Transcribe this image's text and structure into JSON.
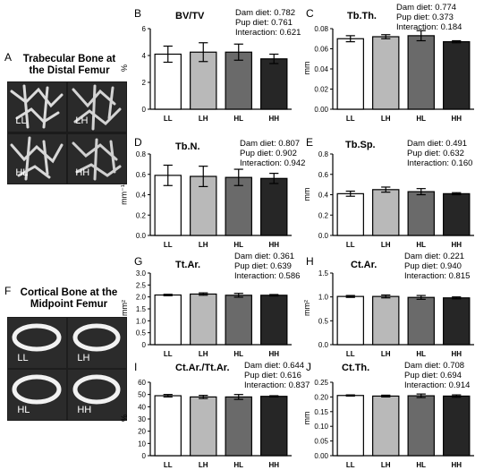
{
  "panel_a": {
    "label": "A",
    "title_line1": "Trabecular Bone at",
    "title_line2": "the Distal Femur",
    "groups": [
      "LL",
      "LH",
      "HL",
      "HH"
    ]
  },
  "panel_f": {
    "label": "F",
    "title_line1": "Cortical Bone at the",
    "title_line2": "Midpoint Femur",
    "groups": [
      "LL",
      "LH",
      "HL",
      "HH"
    ]
  },
  "colors": {
    "LL": "#ffffff",
    "LH": "#b9b9b9",
    "HL": "#6a6a6a",
    "HH": "#262626"
  },
  "chart_data": [
    {
      "id": "B",
      "type": "bar",
      "title": "BV/TV",
      "ylabel": "%",
      "categories": [
        "LL",
        "LH",
        "HL",
        "HH"
      ],
      "values": [
        4.1,
        4.25,
        4.25,
        3.75
      ],
      "errors": [
        0.6,
        0.7,
        0.6,
        0.35
      ],
      "ylim": [
        0,
        6
      ],
      "ticks": [
        0,
        2,
        4,
        6
      ],
      "stats": [
        "Dam diet: 0.782",
        "Pup diet: 0.761",
        "Interaction: 0.621"
      ]
    },
    {
      "id": "C",
      "type": "bar",
      "title": "Tb.Th.",
      "ylabel": "mm",
      "categories": [
        "LL",
        "LH",
        "HL",
        "HH"
      ],
      "values": [
        0.07,
        0.072,
        0.073,
        0.067
      ],
      "errors": [
        0.003,
        0.002,
        0.005,
        0.001
      ],
      "ylim": [
        0,
        0.08
      ],
      "ticks": [
        0,
        0.02,
        0.04,
        0.06,
        0.08
      ],
      "tick_labels": [
        "0.00",
        "0.02",
        "0.04",
        "0.06",
        "0.08"
      ],
      "stats": [
        "Dam diet: 0.774",
        "Pup diet: 0.373",
        "Interaction: 0.184"
      ]
    },
    {
      "id": "D",
      "type": "bar",
      "title": "Tb.N.",
      "ylabel": "mm⁻¹",
      "categories": [
        "LL",
        "LH",
        "HL",
        "HH"
      ],
      "values": [
        0.59,
        0.58,
        0.57,
        0.56
      ],
      "errors": [
        0.1,
        0.1,
        0.08,
        0.05
      ],
      "ylim": [
        0,
        0.8
      ],
      "ticks": [
        0,
        0.2,
        0.4,
        0.6,
        0.8
      ],
      "tick_labels": [
        "0.0",
        "0.2",
        "0.4",
        "0.6",
        "0.8"
      ],
      "stats": [
        "Dam diet: 0.807",
        "Pup diet: 0.902",
        "Interaction: 0.942"
      ]
    },
    {
      "id": "E",
      "type": "bar",
      "title": "Tb.Sp.",
      "ylabel": "mm",
      "categories": [
        "LL",
        "LH",
        "HL",
        "HH"
      ],
      "values": [
        0.41,
        0.45,
        0.43,
        0.41
      ],
      "errors": [
        0.025,
        0.025,
        0.03,
        0.01
      ],
      "ylim": [
        0,
        0.8
      ],
      "ticks": [
        0,
        0.2,
        0.4,
        0.6,
        0.8
      ],
      "tick_labels": [
        "0.0",
        "0.2",
        "0.4",
        "0.6",
        "0.8"
      ],
      "stats": [
        "Dam diet: 0.491",
        "Pup diet: 0.632",
        "Interaction: 0.160"
      ]
    },
    {
      "id": "G",
      "type": "bar",
      "title": "Tt.Ar.",
      "ylabel": "mm²",
      "categories": [
        "LL",
        "LH",
        "HL",
        "HH"
      ],
      "values": [
        2.08,
        2.12,
        2.07,
        2.07
      ],
      "errors": [
        0.03,
        0.05,
        0.08,
        0.03
      ],
      "ylim": [
        0,
        3
      ],
      "ticks": [
        0,
        0.5,
        1.0,
        1.5,
        2.0,
        2.5,
        3.0
      ],
      "tick_labels": [
        "0",
        "0.5",
        "1.0",
        "1.5",
        "2.0",
        "2.5",
        "3.0"
      ],
      "stats": [
        "Dam diet: 0.361",
        "Pup diet: 0.639",
        "Interaction: 0.586"
      ]
    },
    {
      "id": "H",
      "type": "bar",
      "title": "Ct.Ar.",
      "ylabel": "mm²",
      "categories": [
        "LL",
        "LH",
        "HL",
        "HH"
      ],
      "values": [
        1.01,
        1.01,
        0.99,
        0.98
      ],
      "errors": [
        0.02,
        0.03,
        0.04,
        0.02
      ],
      "ylim": [
        0,
        1.5
      ],
      "ticks": [
        0,
        0.5,
        1.0,
        1.5
      ],
      "tick_labels": [
        "0.0",
        "0.5",
        "1.0",
        "1.5"
      ],
      "stats": [
        "Dam diet: 0.221",
        "Pup diet: 0.940",
        "Interaction: 0.815"
      ]
    },
    {
      "id": "I",
      "type": "bar",
      "title": "Ct.Ar./Tt.Ar.",
      "ylabel": "%",
      "categories": [
        "LL",
        "LH",
        "HL",
        "HH"
      ],
      "values": [
        49,
        48,
        48,
        48.5
      ],
      "errors": [
        1,
        1.3,
        2,
        0.5
      ],
      "ylim": [
        0,
        60
      ],
      "ticks": [
        0,
        10,
        20,
        30,
        40,
        50,
        60
      ],
      "stats": [
        "Dam diet: 0.644",
        "Pup diet: 0.616",
        "Interaction: 0.837"
      ]
    },
    {
      "id": "J",
      "type": "bar",
      "title": "Ct.Th.",
      "ylabel": "mm",
      "categories": [
        "LL",
        "LH",
        "HL",
        "HH"
      ],
      "values": [
        0.205,
        0.203,
        0.204,
        0.203
      ],
      "errors": [
        0.002,
        0.003,
        0.006,
        0.004
      ],
      "ylim": [
        0,
        0.25
      ],
      "ticks": [
        0,
        0.05,
        0.1,
        0.15,
        0.2,
        0.25
      ],
      "tick_labels": [
        "0.00",
        "0.05",
        "0.10",
        "0.15",
        "0.20",
        "0.25"
      ],
      "stats": [
        "Dam diet: 0.708",
        "Pup diet: 0.694",
        "Interaction: 0.914"
      ]
    }
  ]
}
